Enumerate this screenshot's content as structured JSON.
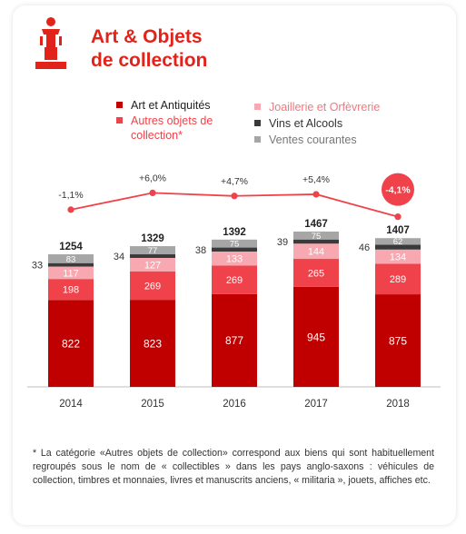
{
  "header": {
    "title_line1": "Art & Objets",
    "title_line2": "de collection"
  },
  "icon": {
    "name": "trophy-statuette-icon"
  },
  "legend": [
    {
      "label": "Art et Antiquités",
      "color": "#c00000",
      "text_color": "#222222"
    },
    {
      "label": "Autres objets de collection*",
      "color": "#f0424a",
      "text_color": "#f0424a"
    },
    {
      "label": "Joaillerie et Orfèvrerie",
      "color": "#f8a8b0",
      "text_color": "#f07880"
    },
    {
      "label": "Vins et Alcools",
      "color": "#3a3a3a",
      "text_color": "#333333"
    },
    {
      "label": "Ventes courantes",
      "color": "#a6a6a6",
      "text_color": "#777777"
    }
  ],
  "chart_data": {
    "type": "bar",
    "stacked": true,
    "categories": [
      "2014",
      "2015",
      "2016",
      "2017",
      "2018"
    ],
    "series": [
      {
        "name": "Art et Antiquités",
        "color": "#c00000",
        "values": [
          822,
          823,
          877,
          945,
          875
        ]
      },
      {
        "name": "Autres objets de collection*",
        "color": "#f0424a",
        "values": [
          198,
          269,
          269,
          265,
          289
        ]
      },
      {
        "name": "Joaillerie et Orfèvrerie",
        "color": "#f8a8b0",
        "values": [
          117,
          127,
          133,
          144,
          134
        ]
      },
      {
        "name": "Vins et Alcools",
        "color": "#3a3a3a",
        "values": [
          33,
          34,
          38,
          39,
          46
        ]
      },
      {
        "name": "Ventes courantes",
        "color": "#a6a6a6",
        "values": [
          83,
          77,
          75,
          75,
          62
        ]
      }
    ],
    "totals": [
      "1254",
      "1329",
      "1392",
      "1467",
      "1407"
    ],
    "growth_line": {
      "labels": [
        "-1,1%",
        "+6,0%",
        "+4,7%",
        "+5,4%",
        "-4,1%"
      ],
      "highlight_index": 4,
      "highlight_color": "#f0424a",
      "values_pct": [
        -1.1,
        6.0,
        4.7,
        5.4,
        -4.1
      ]
    },
    "legend_position": "top",
    "grid": false
  },
  "footnote": "* La catégorie «Autres objets de collection» correspond aux biens qui sont habituellement regroupés sous le nom de « collectibles » dans les pays anglo-saxons : véhicules de collection, timbres et monnaies, livres et manuscrits anciens, « militaria », jouets, affiches etc."
}
